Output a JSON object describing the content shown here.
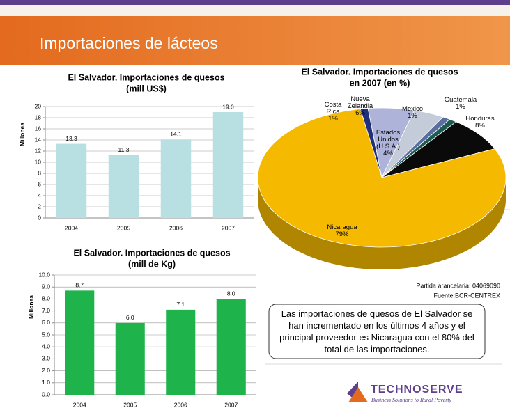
{
  "header": {
    "title": "Importaciones de lácteos"
  },
  "chart_data": [
    {
      "type": "bar",
      "title": "El Salvador. Importaciones de quesos",
      "subtitle": "(mill US$)",
      "y_label": "Millones",
      "categories": [
        "2004",
        "2005",
        "2006",
        "2007"
      ],
      "values": [
        13.3,
        11.3,
        14.1,
        19.0
      ],
      "value_labels": [
        "13.3",
        "11.3",
        "14.1",
        "19.0"
      ],
      "color": "#b8dfe2",
      "ylim": [
        0,
        20
      ],
      "yticks": [
        0,
        2,
        4,
        6,
        8,
        10,
        12,
        14,
        16,
        18,
        20
      ],
      "grid": true
    },
    {
      "type": "pie",
      "title": "El Salvador. Importaciones de quesos",
      "subtitle": "en 2007 (en %)",
      "categories": [
        "Costa Rica",
        "Nueva Zelandia",
        "Estados Unidos (U.S.A.)",
        "Mexico",
        "Guatemala",
        "Honduras",
        "Nicaragua"
      ],
      "values": [
        1,
        6,
        4,
        1,
        1,
        8,
        79
      ],
      "value_labels": [
        "1%",
        "6%",
        "4%",
        "1%",
        "1%",
        "8%",
        "79%"
      ],
      "colors": [
        "#1f2f7a",
        "#aeb3da",
        "#c4cbd9",
        "#5a6fa0",
        "#1d5a52",
        "#0a0a0a",
        "#f5b900"
      ]
    },
    {
      "type": "bar",
      "title": "El Salvador. Importaciones de quesos",
      "subtitle": "(mill de Kg)",
      "y_label": "Millones",
      "categories": [
        "2004",
        "2005",
        "2006",
        "2007"
      ],
      "values": [
        8.7,
        6.0,
        7.1,
        8.0
      ],
      "value_labels": [
        "8.7",
        "6.0",
        "7.1",
        "8.0"
      ],
      "color": "#1fb34b",
      "ylim": [
        0,
        10
      ],
      "yticks": [
        {
          "value": 0,
          "label": "0.0"
        },
        {
          "value": 1,
          "label": "1.0"
        },
        {
          "value": 2,
          "label": "2.0"
        },
        {
          "value": 3,
          "label": "3.0"
        },
        {
          "value": 4,
          "label": "4.0"
        },
        {
          "value": 5,
          "label": "5.0"
        },
        {
          "value": 6,
          "label": "6.0"
        },
        {
          "value": 7,
          "label": "7.0"
        },
        {
          "value": 8,
          "label": "8.0"
        },
        {
          "value": 9,
          "label": "9.0"
        },
        {
          "value": 10,
          "label": "10.0"
        }
      ],
      "grid": true
    }
  ],
  "notes": {
    "tariff": "Partida arancelaria:  04069090",
    "source": "Fuente:BCR-CENTREX"
  },
  "summary": "Las importaciones de quesos de El Salvador se han incrementado en los últimos 4 años y el principal proveedor es Nicaragua con el 80% del total de las importaciones.",
  "logo": {
    "name": "TECHNOSERVE",
    "tagline": "Business Solutions to Rural Poverty"
  }
}
